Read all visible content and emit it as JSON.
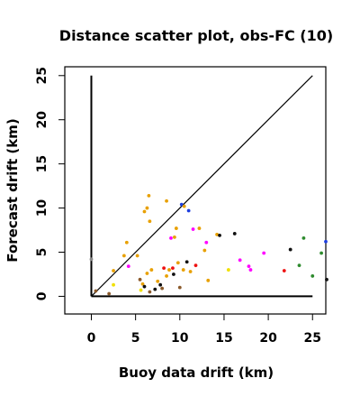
{
  "chart_data": {
    "type": "scatter",
    "title": "Distance scatter plot, obs-FC (10)",
    "xlabel": "Buoy data drift (km)",
    "ylabel": "Forecast drift (km)",
    "xlim": [
      -3,
      26.5
    ],
    "ylim": [
      -2,
      26
    ],
    "xticks": [
      0,
      5,
      10,
      15,
      20,
      25
    ],
    "yticks": [
      0,
      5,
      10,
      15,
      20,
      25
    ],
    "grid": false,
    "colors": {
      "orange": "#e8a000",
      "red": "#ee1111",
      "magenta": "#ff00ff",
      "blue": "#1e3fe0",
      "black": "#111111",
      "green": "#2e8b2e",
      "yellow": "#f0e000",
      "brown": "#8b5a2b",
      "gray": "#888888",
      "line": "#000000"
    },
    "reference_lines": [
      {
        "kind": "diagonal",
        "x": [
          0,
          25
        ],
        "y": [
          0,
          25
        ]
      },
      {
        "kind": "vertical",
        "x": [
          0,
          0
        ],
        "y": [
          0,
          25
        ]
      },
      {
        "kind": "horizontal",
        "x": [
          0,
          25
        ],
        "y": [
          0,
          0
        ]
      }
    ],
    "points": [
      {
        "x": 0.0,
        "y": 4.2,
        "c": "gray"
      },
      {
        "x": 0.5,
        "y": 0.6,
        "c": "brown"
      },
      {
        "x": 2.0,
        "y": 0.3,
        "c": "brown"
      },
      {
        "x": 2.5,
        "y": 2.9,
        "c": "orange"
      },
      {
        "x": 2.5,
        "y": 1.3,
        "c": "yellow"
      },
      {
        "x": 3.7,
        "y": 4.6,
        "c": "orange"
      },
      {
        "x": 4.0,
        "y": 6.1,
        "c": "orange"
      },
      {
        "x": 4.2,
        "y": 3.4,
        "c": "magenta"
      },
      {
        "x": 5.2,
        "y": 4.6,
        "c": "orange"
      },
      {
        "x": 5.5,
        "y": 1.9,
        "c": "brown"
      },
      {
        "x": 5.6,
        "y": 0.7,
        "c": "yellow"
      },
      {
        "x": 5.8,
        "y": 1.4,
        "c": "orange"
      },
      {
        "x": 6.0,
        "y": 1.1,
        "c": "black"
      },
      {
        "x": 6.0,
        "y": 9.6,
        "c": "orange"
      },
      {
        "x": 6.3,
        "y": 10.0,
        "c": "orange"
      },
      {
        "x": 6.3,
        "y": 2.6,
        "c": "orange"
      },
      {
        "x": 6.5,
        "y": 11.4,
        "c": "orange"
      },
      {
        "x": 6.6,
        "y": 8.5,
        "c": "orange"
      },
      {
        "x": 6.8,
        "y": 3.0,
        "c": "orange"
      },
      {
        "x": 6.6,
        "y": 0.5,
        "c": "brown"
      },
      {
        "x": 7.2,
        "y": 0.8,
        "c": "black"
      },
      {
        "x": 7.5,
        "y": 1.7,
        "c": "orange"
      },
      {
        "x": 7.8,
        "y": 1.3,
        "c": "black"
      },
      {
        "x": 8.0,
        "y": 0.9,
        "c": "brown"
      },
      {
        "x": 8.2,
        "y": 3.2,
        "c": "red"
      },
      {
        "x": 8.5,
        "y": 10.8,
        "c": "orange"
      },
      {
        "x": 8.5,
        "y": 2.3,
        "c": "orange"
      },
      {
        "x": 8.8,
        "y": 3.0,
        "c": "orange"
      },
      {
        "x": 9.0,
        "y": 6.6,
        "c": "magenta"
      },
      {
        "x": 9.2,
        "y": 3.2,
        "c": "red"
      },
      {
        "x": 9.3,
        "y": 2.5,
        "c": "black"
      },
      {
        "x": 9.4,
        "y": 6.7,
        "c": "orange"
      },
      {
        "x": 9.6,
        "y": 7.7,
        "c": "orange"
      },
      {
        "x": 9.8,
        "y": 3.8,
        "c": "orange"
      },
      {
        "x": 10.0,
        "y": 1.0,
        "c": "brown"
      },
      {
        "x": 10.2,
        "y": 10.4,
        "c": "blue"
      },
      {
        "x": 10.4,
        "y": 3.0,
        "c": "orange"
      },
      {
        "x": 10.5,
        "y": 10.2,
        "c": "orange"
      },
      {
        "x": 10.8,
        "y": 3.9,
        "c": "black"
      },
      {
        "x": 11.0,
        "y": 9.7,
        "c": "blue"
      },
      {
        "x": 11.2,
        "y": 2.8,
        "c": "orange"
      },
      {
        "x": 11.5,
        "y": 7.6,
        "c": "magenta"
      },
      {
        "x": 11.8,
        "y": 3.5,
        "c": "red"
      },
      {
        "x": 12.2,
        "y": 7.7,
        "c": "orange"
      },
      {
        "x": 12.8,
        "y": 5.2,
        "c": "orange"
      },
      {
        "x": 13.0,
        "y": 6.1,
        "c": "magenta"
      },
      {
        "x": 13.2,
        "y": 1.8,
        "c": "orange"
      },
      {
        "x": 14.2,
        "y": 7.0,
        "c": "orange"
      },
      {
        "x": 14.5,
        "y": 6.9,
        "c": "black"
      },
      {
        "x": 15.5,
        "y": 3.0,
        "c": "yellow"
      },
      {
        "x": 16.2,
        "y": 7.1,
        "c": "black"
      },
      {
        "x": 16.8,
        "y": 4.1,
        "c": "magenta"
      },
      {
        "x": 17.8,
        "y": 3.4,
        "c": "magenta"
      },
      {
        "x": 18.0,
        "y": 3.0,
        "c": "magenta"
      },
      {
        "x": 19.5,
        "y": 4.9,
        "c": "magenta"
      },
      {
        "x": 21.8,
        "y": 2.9,
        "c": "red"
      },
      {
        "x": 22.5,
        "y": 5.3,
        "c": "black"
      },
      {
        "x": 23.5,
        "y": 3.5,
        "c": "green"
      },
      {
        "x": 24.0,
        "y": 6.6,
        "c": "green"
      },
      {
        "x": 25.0,
        "y": 2.3,
        "c": "green"
      },
      {
        "x": 26.0,
        "y": 4.9,
        "c": "green"
      },
      {
        "x": 26.5,
        "y": 6.2,
        "c": "blue"
      },
      {
        "x": 26.6,
        "y": 1.9,
        "c": "black"
      }
    ]
  }
}
